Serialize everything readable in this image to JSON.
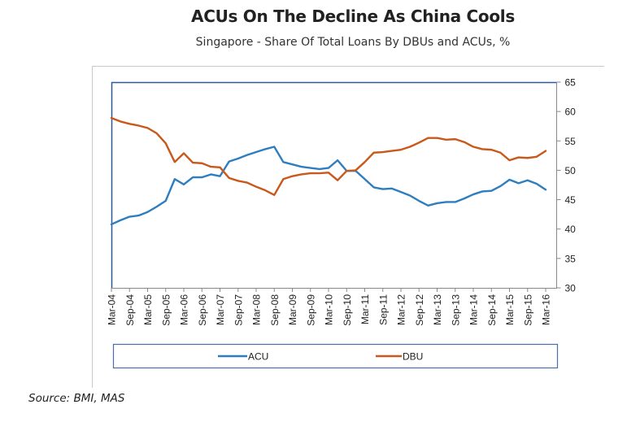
{
  "title": "ACUs On The Decline As China Cools",
  "subtitle": "Singapore - Share Of Total Loans By DBUs and ACUs, %",
  "source": "Source: BMI, MAS",
  "chart_data": {
    "type": "line",
    "title": "ACUs On The Decline As China Cools",
    "subtitle": "Singapore - Share Of Total Loans By DBUs and ACUs, %",
    "xlabel": "",
    "ylabel": "",
    "ylim": [
      30,
      65
    ],
    "yticks": [
      30,
      35,
      40,
      45,
      50,
      55,
      60,
      65
    ],
    "y_axis_side": "right",
    "grid": false,
    "legend_position": "bottom",
    "x_tick_labels": [
      "Mar-04",
      "Sep-04",
      "Mar-05",
      "Sep-05",
      "Mar-06",
      "Sep-06",
      "Mar-07",
      "Sep-07",
      "Mar-08",
      "Sep-08",
      "Mar-09",
      "Sep-09",
      "Mar-10",
      "Sep-10",
      "Mar-11",
      "Sep-11",
      "Mar-12",
      "Sep-12",
      "Mar-13",
      "Sep-13",
      "Mar-14",
      "Sep-14",
      "Mar-15",
      "Sep-15",
      "Mar-16"
    ],
    "x": [
      "Mar-04",
      "Jun-04",
      "Sep-04",
      "Dec-04",
      "Mar-05",
      "Jun-05",
      "Sep-05",
      "Dec-05",
      "Mar-06",
      "Jun-06",
      "Sep-06",
      "Dec-06",
      "Mar-07",
      "Jun-07",
      "Sep-07",
      "Dec-07",
      "Mar-08",
      "Jun-08",
      "Sep-08",
      "Dec-08",
      "Mar-09",
      "Jun-09",
      "Sep-09",
      "Dec-09",
      "Mar-10",
      "Jun-10",
      "Sep-10",
      "Dec-10",
      "Mar-11",
      "Jun-11",
      "Sep-11",
      "Dec-11",
      "Mar-12",
      "Jun-12",
      "Sep-12",
      "Dec-12",
      "Mar-13",
      "Jun-13",
      "Sep-13",
      "Dec-13",
      "Mar-14",
      "Jun-14",
      "Sep-14",
      "Dec-14",
      "Mar-15",
      "Jun-15",
      "Sep-15",
      "Dec-15",
      "Mar-16"
    ],
    "series": [
      {
        "name": "ACU",
        "color": "#2e7ebf",
        "values": [
          40.8,
          41.5,
          42.1,
          42.3,
          42.9,
          43.8,
          44.8,
          48.5,
          47.6,
          48.8,
          48.8,
          49.3,
          49.0,
          51.5,
          52.0,
          52.6,
          53.1,
          53.6,
          54.0,
          51.4,
          51.0,
          50.6,
          50.4,
          50.2,
          50.4,
          51.7,
          49.9,
          49.9,
          48.5,
          47.1,
          46.8,
          46.9,
          46.3,
          45.7,
          44.8,
          44.0,
          44.4,
          44.6,
          44.6,
          45.2,
          45.9,
          46.4,
          46.5,
          47.3,
          48.4,
          47.8,
          48.3,
          47.7,
          46.7
        ]
      },
      {
        "name": "DBU",
        "color": "#c9581b",
        "values": [
          58.9,
          58.3,
          57.9,
          57.6,
          57.2,
          56.3,
          54.6,
          51.4,
          52.9,
          51.3,
          51.2,
          50.6,
          50.5,
          48.7,
          48.2,
          47.9,
          47.2,
          46.6,
          45.8,
          48.5,
          49.0,
          49.3,
          49.5,
          49.5,
          49.6,
          48.3,
          49.9,
          50.0,
          51.4,
          53.0,
          53.1,
          53.3,
          53.5,
          54.0,
          54.7,
          55.5,
          55.5,
          55.2,
          55.3,
          54.8,
          54.0,
          53.6,
          53.5,
          53.0,
          51.7,
          52.2,
          52.1,
          52.3,
          53.3
        ]
      }
    ]
  }
}
